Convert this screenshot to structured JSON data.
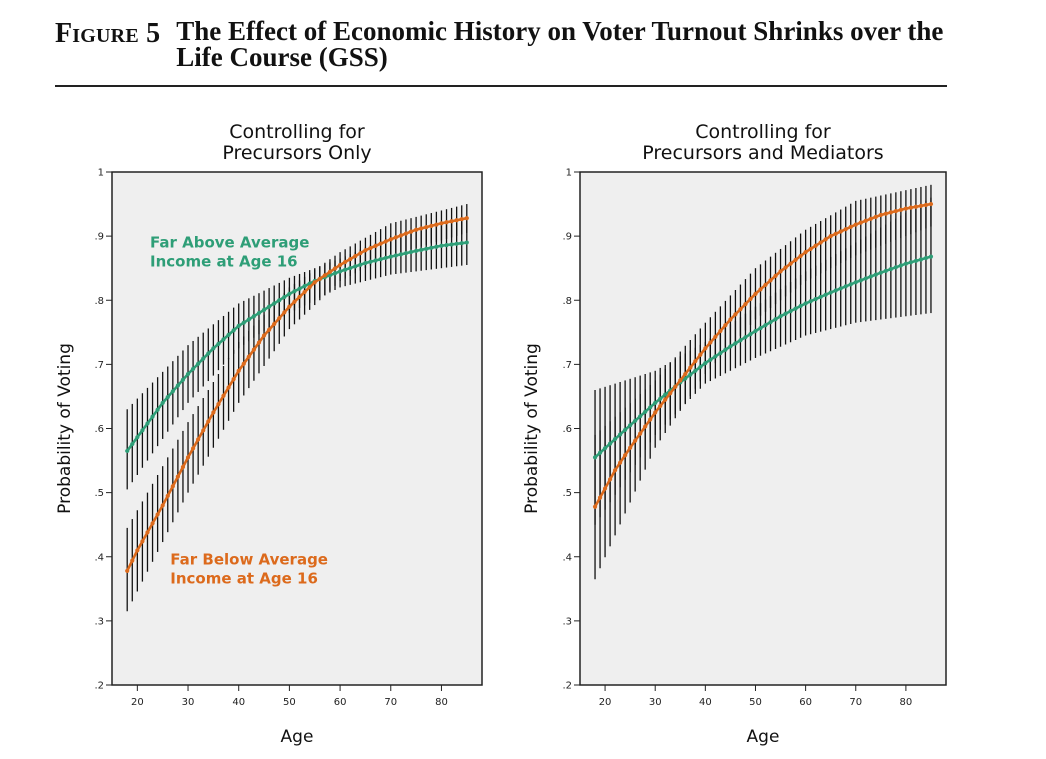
{
  "figure": {
    "label": "Figure 5",
    "title": "The Effect of Economic History on Voter Turnout Shrinks over the Life Course (GSS)"
  },
  "colors": {
    "above": "#2e9e77",
    "below": "#dc6a1c",
    "ci": "#111111",
    "plot_bg": "#efefef"
  },
  "chart_data": [
    {
      "type": "line",
      "title": "Controlling for Precursors Only",
      "title_lines": [
        "Controlling for",
        "Precursors Only"
      ],
      "xlabel": "Age",
      "ylabel": "Probability of Voting",
      "xlim": [
        15,
        88
      ],
      "ylim": [
        0.2,
        1.0
      ],
      "xticks": [
        "20",
        "30",
        "40",
        "50",
        "60",
        "70",
        "80"
      ],
      "yticks": [
        ".2",
        ".3",
        ".4",
        ".5",
        ".6",
        ".7",
        ".8",
        ".9",
        "1"
      ],
      "x_range": [
        18,
        85
      ],
      "annotations": [
        {
          "series": "above",
          "lines": [
            "Far Above Average",
            "Income at Age 16"
          ],
          "x": 22.5,
          "y": 0.882
        },
        {
          "series": "below",
          "lines": [
            "Far Below Average",
            "Income at Age 16"
          ],
          "x": 26.5,
          "y": 0.388
        }
      ],
      "series": [
        {
          "name": "Far Above Average Income at Age 16",
          "key": "above",
          "points": [
            [
              18,
              0.565
            ],
            [
              25,
              0.64
            ],
            [
              30,
              0.685
            ],
            [
              35,
              0.725
            ],
            [
              40,
              0.76
            ],
            [
              45,
              0.785
            ],
            [
              50,
              0.81
            ],
            [
              55,
              0.83
            ],
            [
              60,
              0.845
            ],
            [
              65,
              0.858
            ],
            [
              70,
              0.868
            ],
            [
              75,
              0.877
            ],
            [
              80,
              0.885
            ],
            [
              85,
              0.89
            ]
          ],
          "ci": [
            [
              18,
              0.505,
              0.63
            ],
            [
              30,
              0.64,
              0.73
            ],
            [
              40,
              0.725,
              0.795
            ],
            [
              50,
              0.78,
              0.835
            ],
            [
              60,
              0.82,
              0.865
            ],
            [
              70,
              0.84,
              0.9
            ],
            [
              85,
              0.855,
              0.93
            ]
          ]
        },
        {
          "name": "Far Below Average Income at Age 16",
          "key": "below",
          "points": [
            [
              18,
              0.378
            ],
            [
              20,
              0.41
            ],
            [
              25,
              0.48
            ],
            [
              30,
              0.555
            ],
            [
              35,
              0.625
            ],
            [
              40,
              0.69
            ],
            [
              45,
              0.745
            ],
            [
              50,
              0.79
            ],
            [
              55,
              0.828
            ],
            [
              60,
              0.855
            ],
            [
              65,
              0.878
            ],
            [
              70,
              0.895
            ],
            [
              75,
              0.91
            ],
            [
              80,
              0.92
            ],
            [
              85,
              0.928
            ]
          ],
          "ci": [
            [
              18,
              0.315,
              0.445
            ],
            [
              30,
              0.5,
              0.61
            ],
            [
              40,
              0.64,
              0.735
            ],
            [
              50,
              0.755,
              0.82
            ],
            [
              60,
              0.83,
              0.875
            ],
            [
              70,
              0.87,
              0.92
            ],
            [
              85,
              0.905,
              0.95
            ]
          ]
        }
      ]
    },
    {
      "type": "line",
      "title": "Controlling for Precursors and Mediators",
      "title_lines": [
        "Controlling for",
        "Precursors and Mediators"
      ],
      "xlabel": "Age",
      "ylabel": "Probability of Voting",
      "xlim": [
        15,
        88
      ],
      "ylim": [
        0.2,
        1.0
      ],
      "xticks": [
        "20",
        "30",
        "40",
        "50",
        "60",
        "70",
        "80"
      ],
      "yticks": [
        ".2",
        ".3",
        ".4",
        ".5",
        ".6",
        ".7",
        ".8",
        ".9",
        "1"
      ],
      "x_range": [
        18,
        85
      ],
      "annotations": [],
      "series": [
        {
          "name": "Far Above Average Income at Age 16",
          "key": "above",
          "points": [
            [
              18,
              0.555
            ],
            [
              25,
              0.605
            ],
            [
              30,
              0.64
            ],
            [
              35,
              0.672
            ],
            [
              40,
              0.702
            ],
            [
              45,
              0.728
            ],
            [
              50,
              0.752
            ],
            [
              55,
              0.775
            ],
            [
              60,
              0.795
            ],
            [
              65,
              0.812
            ],
            [
              70,
              0.828
            ],
            [
              75,
              0.843
            ],
            [
              80,
              0.857
            ],
            [
              85,
              0.868
            ]
          ],
          "ci": [
            [
              18,
              0.45,
              0.66
            ],
            [
              30,
              0.59,
              0.69
            ],
            [
              40,
              0.67,
              0.735
            ],
            [
              50,
              0.71,
              0.79
            ],
            [
              60,
              0.745,
              0.845
            ],
            [
              70,
              0.765,
              0.89
            ],
            [
              85,
              0.78,
              0.96
            ]
          ]
        },
        {
          "name": "Far Below Average Income at Age 16",
          "key": "below",
          "points": [
            [
              18,
              0.478
            ],
            [
              22,
              0.535
            ],
            [
              25,
              0.57
            ],
            [
              30,
              0.625
            ],
            [
              35,
              0.675
            ],
            [
              40,
              0.725
            ],
            [
              45,
              0.77
            ],
            [
              50,
              0.81
            ],
            [
              55,
              0.845
            ],
            [
              60,
              0.875
            ],
            [
              65,
              0.9
            ],
            [
              70,
              0.918
            ],
            [
              75,
              0.933
            ],
            [
              80,
              0.943
            ],
            [
              85,
              0.95
            ]
          ],
          "ci": [
            [
              18,
              0.365,
              0.59
            ],
            [
              30,
              0.57,
              0.675
            ],
            [
              40,
              0.685,
              0.765
            ],
            [
              50,
              0.77,
              0.85
            ],
            [
              60,
              0.83,
              0.91
            ],
            [
              70,
              0.87,
              0.955
            ],
            [
              85,
              0.915,
              0.98
            ]
          ]
        }
      ]
    }
  ]
}
